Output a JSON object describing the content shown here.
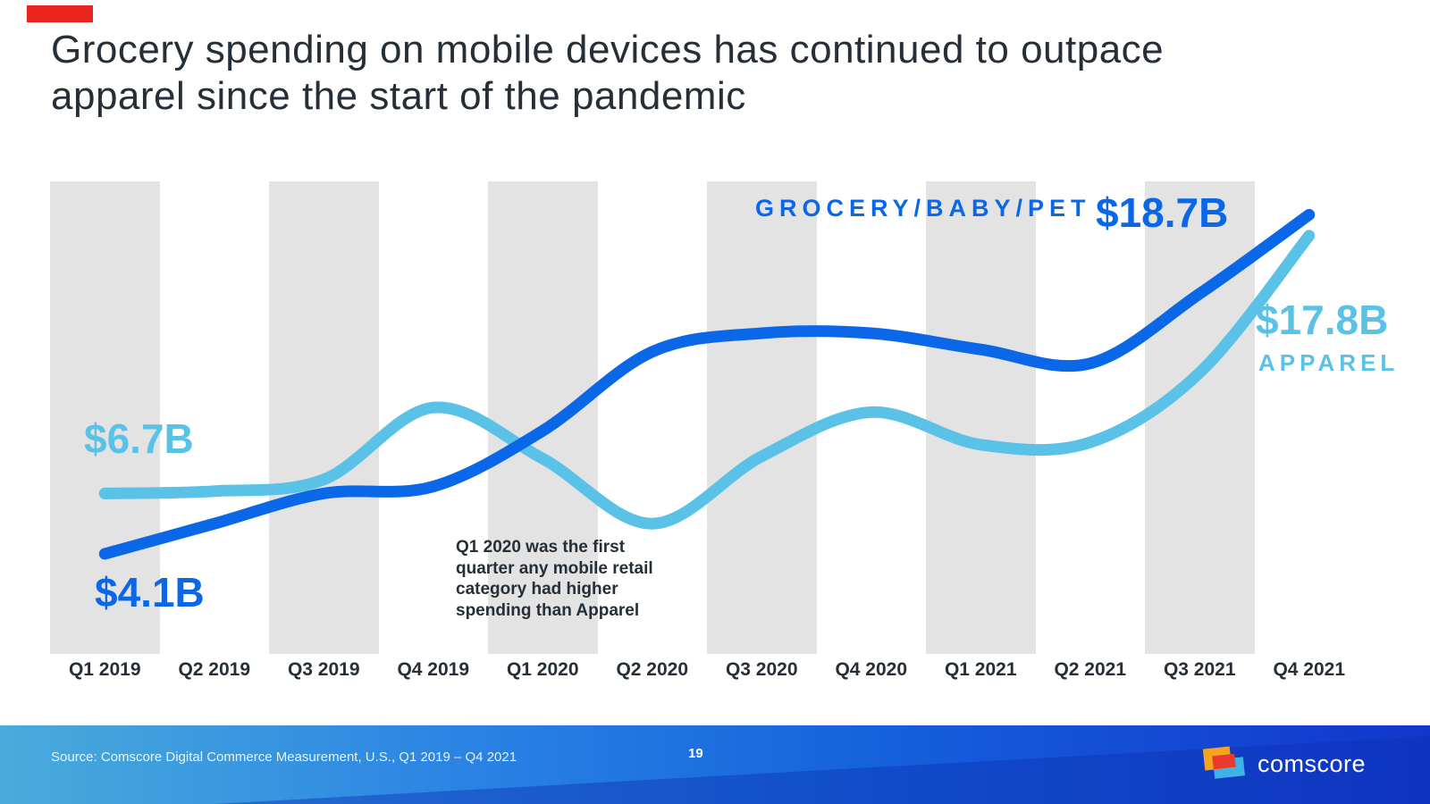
{
  "slide": {
    "title_line1": "Grocery spending on mobile devices has continued to outpace",
    "title_line2": "apparel since the start of the pandemic",
    "source": "Source: Comscore Digital Commerce Measurement, U.S., Q1 2019 – Q4 2021",
    "page_number": "19",
    "logo_text": "comscore"
  },
  "colors": {
    "grocery_blue": "#0A68E8",
    "apparel_light_blue": "#5BC2E7",
    "title_dark": "#262E38",
    "band_gray": "#E3E3E3",
    "accent_red": "#E8251D",
    "footer_gradient_left": "#49ACDB",
    "footer_gradient_right": "#1335CC"
  },
  "chart_data": {
    "type": "line",
    "unit": "$B (billions USD)",
    "categories": [
      "Q1 2019",
      "Q2 2019",
      "Q3 2019",
      "Q4 2019",
      "Q1 2020",
      "Q2 2020",
      "Q3 2020",
      "Q4 2020",
      "Q1 2021",
      "Q2 2021",
      "Q3 2021",
      "Q4 2021"
    ],
    "series": [
      {
        "name": "GROCERY/BABY/PET",
        "color": "#0A68E8",
        "start_label": "$4.1B",
        "end_label": "$18.7B",
        "values": [
          4.1,
          5.4,
          6.7,
          7.0,
          9.4,
          12.8,
          13.6,
          13.6,
          12.9,
          12.3,
          15.3,
          18.7
        ]
      },
      {
        "name": "APPAREL",
        "color": "#5BC2E7",
        "start_label": "$6.7B",
        "end_label": "$17.8B",
        "values": [
          6.7,
          6.8,
          7.3,
          10.4,
          8.2,
          5.4,
          8.3,
          10.2,
          8.8,
          8.9,
          11.9,
          17.8
        ]
      }
    ],
    "ylim": [
      0,
      20
    ],
    "grid": "alternating vertical gray bands behind odd quarters (Q1 2019, Q3 2019, Q1 2020, Q3 2020, Q1 2021, Q3 2021)",
    "legend_position": "inline labels at line start and end",
    "annotation": {
      "lines": [
        "Q1 2020 was the first",
        "quarter any mobile retail",
        "category had higher",
        "spending than Apparel"
      ]
    }
  }
}
